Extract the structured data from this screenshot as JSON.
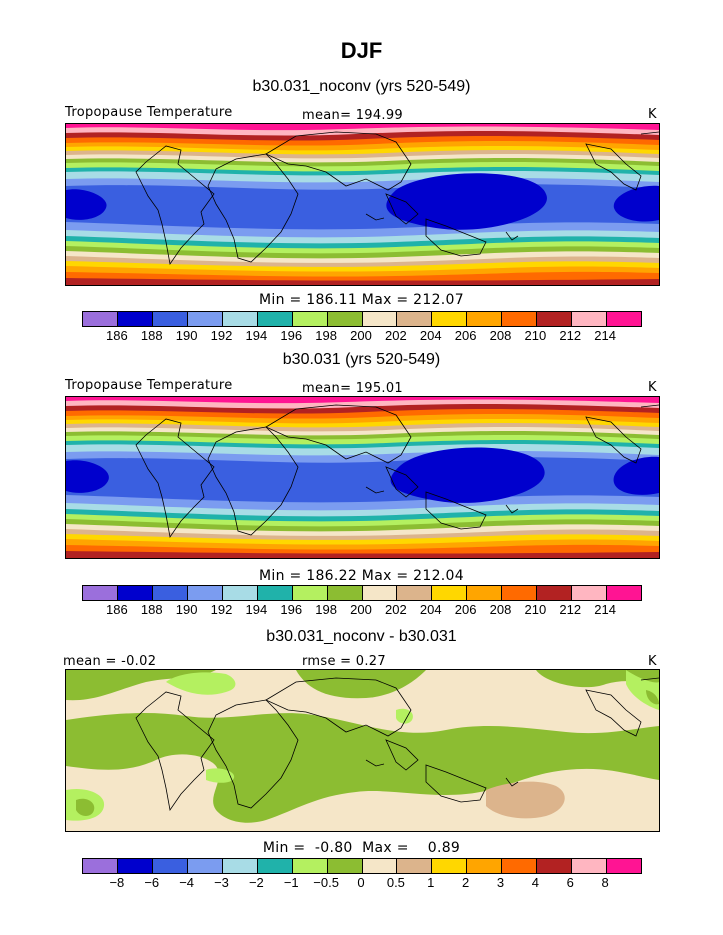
{
  "figure": {
    "title": "DJF"
  },
  "panels": [
    {
      "case_title": "b30.031_noconv (yrs 520-549)",
      "variable": "Tropopause Temperature",
      "mean_text": "mean= 194.99",
      "units": "K",
      "stats_text": "Min = 186.11  Max = 212.07"
    },
    {
      "case_title": "b30.031 (yrs 520-549)",
      "variable": "Tropopause Temperature",
      "mean_text": "mean= 195.01",
      "units": "K",
      "stats_text": "Min = 186.22  Max = 212.04"
    },
    {
      "case_title": "b30.031_noconv - b30.031",
      "mean_text": "mean =   -0.02",
      "rmse_text": "rmse =    0.27",
      "units": "K",
      "stats_text": "Min =  -0.80  Max =    0.89"
    }
  ],
  "colorbars": {
    "abs": {
      "colors": [
        "#9b6fdc",
        "#0000cd",
        "#3a5fe0",
        "#7b9cf0",
        "#a8dce6",
        "#20b2aa",
        "#b4f060",
        "#8cbd32",
        "#f5e6c8",
        "#dcb48c",
        "#ffd700",
        "#ffa500",
        "#ff6a00",
        "#b22222",
        "#ffb6c1",
        "#ff1493"
      ],
      "labels": [
        "186",
        "188",
        "190",
        "192",
        "194",
        "196",
        "198",
        "200",
        "202",
        "204",
        "206",
        "208",
        "210",
        "212",
        "214"
      ]
    },
    "diff": {
      "colors": [
        "#9b6fdc",
        "#0000cd",
        "#3a5fe0",
        "#7b9cf0",
        "#a8dce6",
        "#20b2aa",
        "#b4f060",
        "#8cbd32",
        "#f5e6c8",
        "#dcb48c",
        "#ffd700",
        "#ffa500",
        "#ff6a00",
        "#b22222",
        "#ffb6c1",
        "#ff1493"
      ],
      "labels": [
        "−8",
        "−6",
        "−4",
        "−3",
        "−2",
        "−1",
        "−0.5",
        "0",
        "0.5",
        "1",
        "2",
        "3",
        "4",
        "6",
        "8"
      ]
    }
  }
}
